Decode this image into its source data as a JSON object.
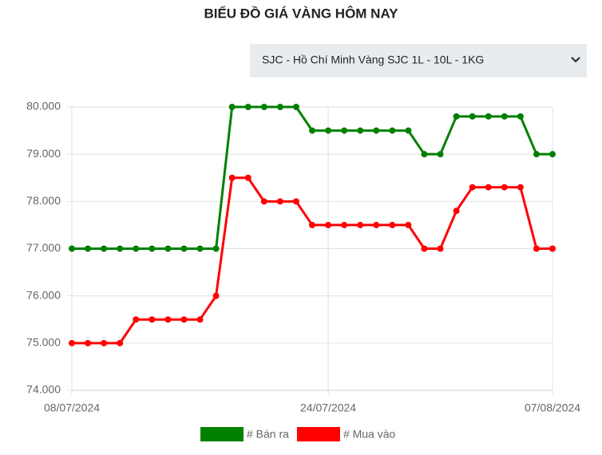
{
  "chart_data": {
    "type": "line",
    "title": "BIỂU ĐỒ GIÁ VÀNG HÔM NAY",
    "selector": "SJC - Hồ Chí Minh Vàng SJC 1L - 10L - 1KG",
    "categories": [
      "08/07/2024",
      null,
      null,
      null,
      null,
      null,
      null,
      null,
      null,
      null,
      null,
      null,
      null,
      null,
      null,
      null,
      "24/07/2024",
      null,
      null,
      null,
      null,
      null,
      null,
      null,
      null,
      null,
      null,
      null,
      null,
      null,
      "07/08/2024"
    ],
    "series": [
      {
        "name": "# Bán ra",
        "color": "#008000",
        "values": [
          77000,
          77000,
          77000,
          77000,
          77000,
          77000,
          77000,
          77000,
          77000,
          77000,
          80000,
          80000,
          80000,
          80000,
          80000,
          79500,
          79500,
          79500,
          79500,
          79500,
          79500,
          79500,
          79000,
          79000,
          79800,
          79800,
          79800,
          79800,
          79800,
          79000,
          79000
        ]
      },
      {
        "name": "# Mua vào",
        "color": "#ff0000",
        "values": [
          75000,
          75000,
          75000,
          75000,
          75500,
          75500,
          75500,
          75500,
          75500,
          76000,
          78500,
          78500,
          78000,
          78000,
          78000,
          77500,
          77500,
          77500,
          77500,
          77500,
          77500,
          77500,
          77000,
          77000,
          77800,
          78300,
          78300,
          78300,
          78300,
          77000,
          77000
        ]
      }
    ],
    "ylim": [
      74000,
      80000
    ],
    "yticks": [
      {
        "value": 74000,
        "label": "74.000"
      },
      {
        "value": 75000,
        "label": "75.000"
      },
      {
        "value": 76000,
        "label": "76.000"
      },
      {
        "value": 77000,
        "label": "77.000"
      },
      {
        "value": 78000,
        "label": "78.000"
      },
      {
        "value": 79000,
        "label": "79.000"
      },
      {
        "value": 80000,
        "label": "80.000"
      }
    ],
    "grid": true
  }
}
